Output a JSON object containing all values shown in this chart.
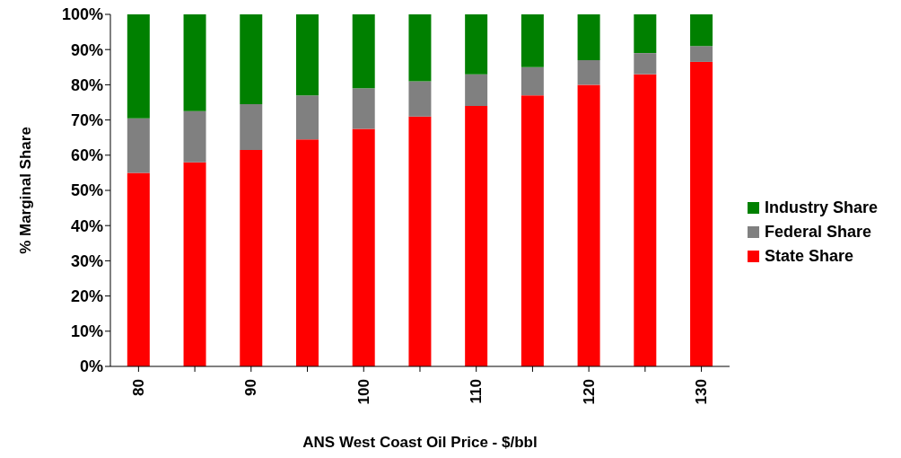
{
  "chart_data": {
    "type": "bar",
    "stacked": true,
    "xlabel": "ANS West Coast Oil Price - $/bbl",
    "ylabel": "% Marginal Share",
    "categories": [
      "80",
      null,
      "90",
      null,
      "100",
      null,
      "110",
      null,
      "120",
      null,
      "130"
    ],
    "series": [
      {
        "name": "State Share",
        "color": "#ff0000",
        "values": [
          55,
          58,
          61.5,
          64.5,
          67.5,
          71,
          74,
          77,
          80,
          83,
          86.5
        ]
      },
      {
        "name": "Federal Share",
        "color": "#808080",
        "values": [
          15.5,
          14.5,
          13,
          12.5,
          11.5,
          10,
          9,
          8,
          7,
          6,
          4.5
        ]
      },
      {
        "name": "Industry Share",
        "color": "#008000",
        "values": [
          29.5,
          27.5,
          25.5,
          23,
          21,
          19,
          17,
          15,
          13,
          11,
          9
        ]
      }
    ],
    "ylim": [
      0,
      100
    ],
    "yticks": [
      {
        "value": 0,
        "label": "0%"
      },
      {
        "value": 10,
        "label": "10%"
      },
      {
        "value": 20,
        "label": "20%"
      },
      {
        "value": 30,
        "label": "30%"
      },
      {
        "value": 40,
        "label": "40%"
      },
      {
        "value": 50,
        "label": "50%"
      },
      {
        "value": 60,
        "label": "60%"
      },
      {
        "value": 70,
        "label": "70%"
      },
      {
        "value": 80,
        "label": "80%"
      },
      {
        "value": 90,
        "label": "90%"
      },
      {
        "value": 100,
        "label": "100%"
      }
    ],
    "grid": false,
    "legend": "right"
  }
}
